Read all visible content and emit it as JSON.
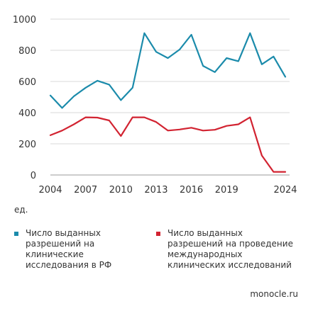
{
  "chart_data": {
    "type": "line",
    "title": "",
    "xlabel": "",
    "ylabel": "ед.",
    "x": [
      2004,
      2005,
      2006,
      2007,
      2008,
      2009,
      2010,
      2011,
      2012,
      2013,
      2014,
      2015,
      2016,
      2017,
      2018,
      2019,
      2020,
      2021,
      2022,
      2023,
      2024
    ],
    "x_tick_labels": [
      "2004",
      "2007",
      "2010",
      "2013",
      "2016",
      "2019",
      "2024"
    ],
    "y_tick_labels": [
      "0",
      "200",
      "400",
      "600",
      "800",
      "1000"
    ],
    "ylim": [
      0,
      1000
    ],
    "grid": "horizontal",
    "legend_position": "bottom",
    "series": [
      {
        "name": "Число выданных разрешений на клинические исследования в РФ",
        "color": "#1b8bab",
        "values": [
          510,
          430,
          505,
          560,
          605,
          580,
          480,
          560,
          910,
          790,
          750,
          805,
          900,
          700,
          660,
          750,
          730,
          910,
          710,
          760,
          630
        ]
      },
      {
        "name": "Число выданных разрешений на проведение международных клинических исследований",
        "color": "#d22331",
        "values": [
          255,
          285,
          325,
          370,
          368,
          350,
          250,
          370,
          370,
          340,
          285,
          292,
          303,
          285,
          290,
          315,
          325,
          370,
          125,
          20,
          20
        ]
      }
    ]
  },
  "legend": {
    "series_1_text": "Число выданных\nразрешений на клинические\nисследования в РФ",
    "series_2_text": "Число выданных\nразрешений на проведение\nмеждународных\nклинических исследований"
  },
  "source": "monocle.ru"
}
